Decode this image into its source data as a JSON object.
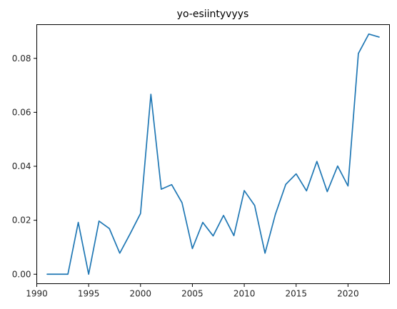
{
  "chart_data": {
    "type": "line",
    "title": "yo-esiintyvyys",
    "xlabel": "",
    "ylabel": "",
    "xlim": [
      1990.0,
      2024.0
    ],
    "ylim": [
      -0.0035,
      0.0925
    ],
    "xticks": [
      1990,
      1995,
      2000,
      2005,
      2010,
      2015,
      2020
    ],
    "xtick_labels": [
      "1990",
      "1995",
      "2000",
      "2005",
      "2010",
      "2015",
      "2020"
    ],
    "yticks": [
      0.0,
      0.02,
      0.04,
      0.06,
      0.08
    ],
    "ytick_labels": [
      "0.00",
      "0.02",
      "0.04",
      "0.06",
      "0.08"
    ],
    "grid": false,
    "series": [
      {
        "color": "#1f77b4",
        "x": [
          1991,
          1992,
          1993,
          1994,
          1995,
          1996,
          1997,
          1998,
          1999,
          2000,
          2001,
          2002,
          2003,
          2004,
          2005,
          2006,
          2007,
          2008,
          2009,
          2010,
          2011,
          2012,
          2013,
          2014,
          2015,
          2016,
          2017,
          2018,
          2019,
          2020,
          2021,
          2022,
          2023
        ],
        "y": [
          0.0,
          0.0,
          0.0,
          0.0192,
          0.0,
          0.0197,
          0.0169,
          0.0078,
          0.015,
          0.0225,
          0.0667,
          0.0315,
          0.0332,
          0.0265,
          0.0095,
          0.0192,
          0.0142,
          0.0218,
          0.0143,
          0.031,
          0.0255,
          0.0078,
          0.0222,
          0.0333,
          0.0372,
          0.0309,
          0.0418,
          0.0306,
          0.0401,
          0.0327,
          0.0818,
          0.089,
          0.0879
        ]
      }
    ]
  }
}
